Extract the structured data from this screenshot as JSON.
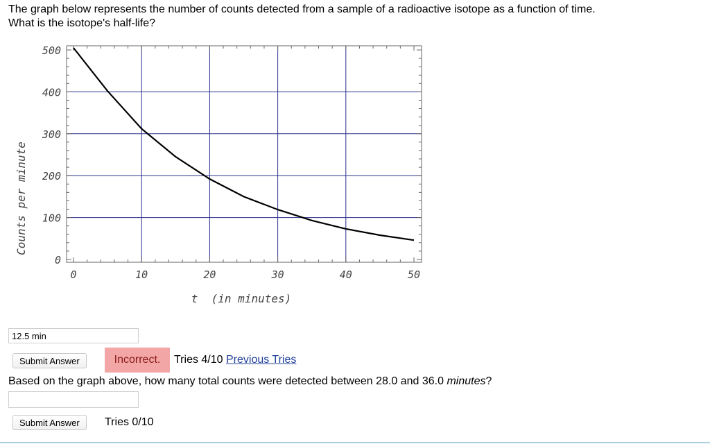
{
  "question1": {
    "line1": "The graph below represents the number of counts detected from a sample of a radioactive isotope as a function of time.",
    "line2": "What is the isotope's half-life?"
  },
  "chart_data": {
    "type": "line",
    "ylabel": "Counts per minute",
    "xlabel": "t  (in minutes)",
    "x_ticks": [
      "0",
      "10",
      "20",
      "30",
      "40",
      "50"
    ],
    "y_ticks": [
      "0",
      "100",
      "200",
      "300",
      "400",
      "500"
    ],
    "xlim": [
      0,
      50
    ],
    "ylim": [
      0,
      500
    ],
    "grid": true,
    "series": [
      {
        "x": [
          0,
          5,
          10,
          15,
          20,
          25,
          30,
          35,
          40,
          45,
          50
        ],
        "y": [
          505,
          402,
          312,
          245,
          192,
          150,
          119,
          93,
          73,
          58,
          46
        ]
      }
    ]
  },
  "answer1": {
    "value": "12.5 min"
  },
  "submit1": {
    "label": "Submit Answer"
  },
  "status1": {
    "incorrect": "Incorrect.",
    "tries": "Tries 4/10",
    "previous": "Previous Tries"
  },
  "question2": {
    "prefix": "Based on the graph above, how many total counts were detected between 28.0 and 36.0 ",
    "unit": "minutes",
    "suffix": "?"
  },
  "answer2": {
    "value": ""
  },
  "submit2": {
    "label": "Submit Answer"
  },
  "status2": {
    "tries": "Tries 0/10"
  }
}
